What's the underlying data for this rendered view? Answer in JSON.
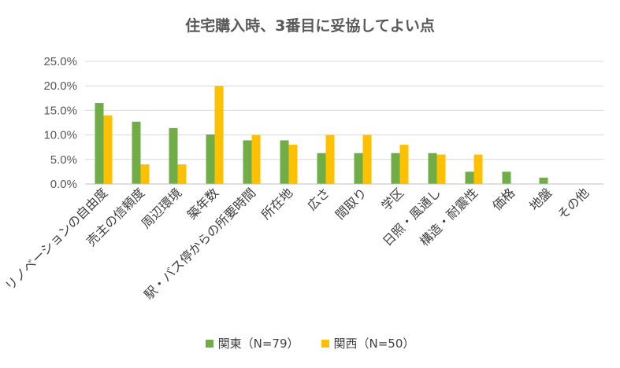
{
  "chart_data": {
    "type": "bar",
    "title": "住宅購入時、3番目に妥協してよい点",
    "categories": [
      "リノベーションの自由度",
      "売主の信頼度",
      "周辺環境",
      "築年数",
      "駅・バス停からの所要時間",
      "所在地",
      "広さ",
      "間取り",
      "学区",
      "日照・風通し",
      "構造・耐震性",
      "価格",
      "地盤",
      "その他"
    ],
    "series": [
      {
        "name": "関東（N=79）",
        "color": "#70AD47",
        "values": [
          16.5,
          12.7,
          11.4,
          10.1,
          8.9,
          8.9,
          6.3,
          6.3,
          6.3,
          6.3,
          2.5,
          2.5,
          1.3,
          0.0
        ]
      },
      {
        "name": "関西（N=50）",
        "color": "#FFC000",
        "values": [
          14.0,
          4.0,
          4.0,
          20.0,
          10.0,
          8.0,
          10.0,
          10.0,
          8.0,
          6.0,
          6.0,
          0.0,
          0.0,
          0.0
        ]
      }
    ],
    "y_ticks": [
      "0.0%",
      "5.0%",
      "10.0%",
      "15.0%",
      "20.0%",
      "25.0%"
    ],
    "ylim": [
      0,
      25
    ],
    "grid": true,
    "legend_position": "bottom"
  }
}
